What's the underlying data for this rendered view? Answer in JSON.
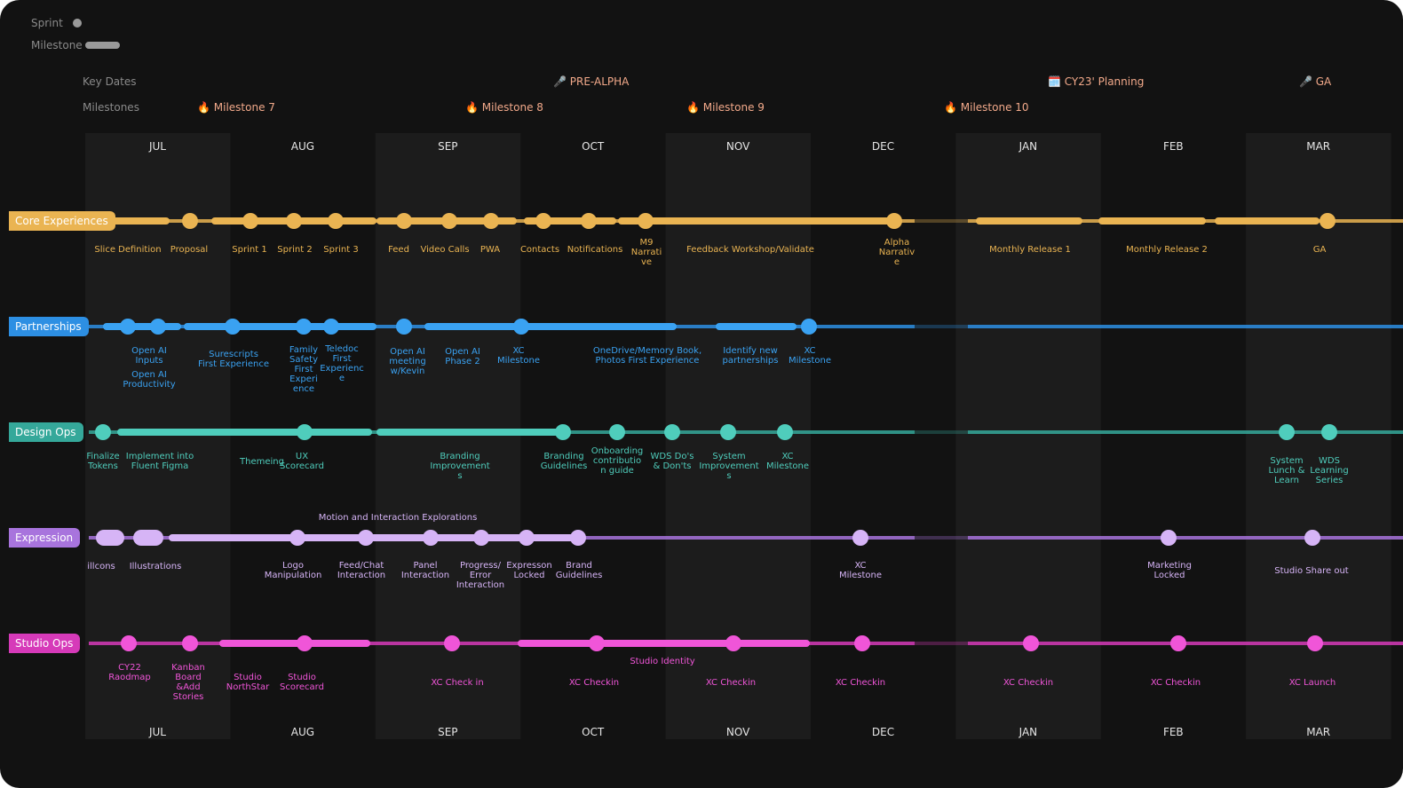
{
  "legend": [
    "Sprint",
    "Milestone"
  ],
  "key_dates": {
    "label": "Key Dates",
    "items": [
      "🎤 PRE-ALPHA",
      "🗓️ CY23' Planning",
      "🎤 GA"
    ]
  },
  "milestones": {
    "label": "Milestones",
    "items": [
      "🔥 Milestone 7",
      "🔥 Milestone 8",
      "🔥 Milestone 9",
      "🔥 Milestone 10"
    ]
  },
  "months": [
    "JUL",
    "AUG",
    "SEP",
    "OCT",
    "NOV",
    "DEC",
    "JAN",
    "FEB",
    "MAR"
  ],
  "lanes": [
    {
      "name": "Core Experiences",
      "color": "#eab452",
      "items": [
        "Slice Definition",
        "Proposal",
        "Sprint 1",
        "Sprint 2",
        "Sprint 3",
        "Feed",
        "Video Calls",
        "PWA",
        "Contacts",
        "Notifications",
        "M9 Narrative",
        "Feedback Workshop/Validate",
        "Alpha Narrative",
        "Monthly Release 1",
        "Monthly Release 2",
        "GA"
      ]
    },
    {
      "name": "Partnerships",
      "color": "#2d8fe3",
      "items": [
        "Open AI Inputs",
        "Open AI Productivity",
        "Surescripts First Experience",
        "Family Safety First Experience",
        "Teledoc First Experience",
        "Open AI meeting w/Kevin",
        "Open AI Phase 2",
        "XC Milestone",
        "OneDrive/Memory Book, Photos First Experience",
        "Identify new partnerships",
        "XC Milestone"
      ]
    },
    {
      "name": "Design Ops",
      "color": "#35a89a",
      "items": [
        "Finalize Tokens",
        "Implement into Fluent Figma",
        "Themeing",
        "UX Scorecard",
        "Branding Improvements",
        "Branding Guidelines",
        "Onboarding contribution guide",
        "WDS Do's & Don'ts",
        "System Improvements",
        "XC Milestone",
        "System Lunch & Learn",
        "WDS Learning Series"
      ]
    },
    {
      "name": "Expression",
      "color": "#a874dd",
      "items": [
        "Motion and Interaction Explorations",
        "illcons",
        "Illustrations",
        "Logo Manipulation",
        "Feed/Chat Interaction",
        "Panel Interaction",
        "Progress/ Error Interaction",
        "Expresson Locked",
        "Brand Guidelines",
        "XC Milestone",
        "Marketing Locked",
        "Studio Share out"
      ]
    },
    {
      "name": "Studio Ops",
      "color": "#d63ab9",
      "items": [
        "CY22 Raodmap",
        "Kanban Board &Add Stories",
        "Studio NorthStar",
        "Studio Scorecard",
        "XC Check in",
        "XC Checkin",
        "Studio Identity",
        "XC Checkin",
        "XC Checkin",
        "XC Checkin",
        "XC Checkin",
        "XC Launch"
      ]
    }
  ]
}
